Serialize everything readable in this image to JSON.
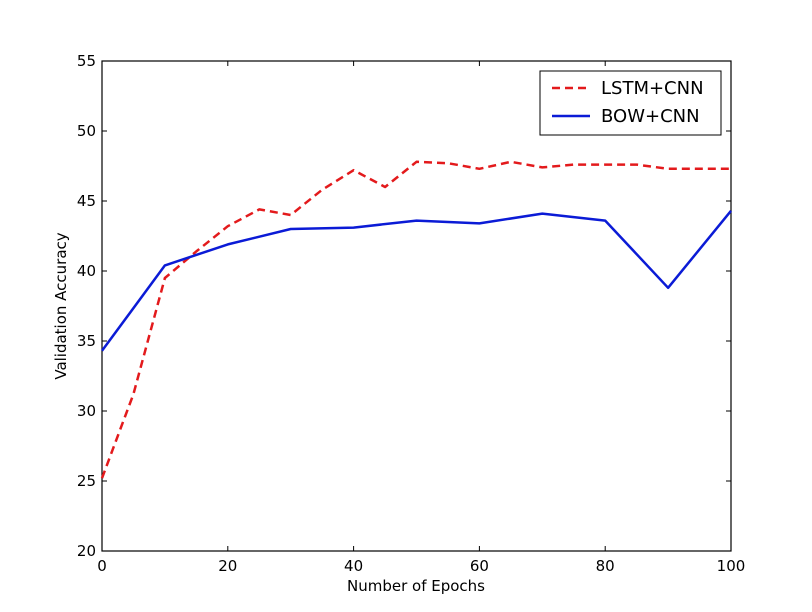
{
  "chart_data": {
    "type": "line",
    "title": "",
    "xlabel": "Number of Epochs",
    "ylabel": "Validation Accuracy",
    "xlim": [
      0,
      100
    ],
    "ylim": [
      20,
      55
    ],
    "xticks": [
      0,
      20,
      40,
      60,
      80,
      100
    ],
    "yticks": [
      20,
      25,
      30,
      35,
      40,
      45,
      50,
      55
    ],
    "grid": false,
    "legend_position": "top-right",
    "series": [
      {
        "name": "LSTM+CNN",
        "color": "#e31a1c",
        "style": "dashed",
        "x": [
          0,
          5,
          10,
          15,
          20,
          25,
          30,
          35,
          40,
          45,
          50,
          55,
          60,
          65,
          70,
          75,
          80,
          85,
          90,
          95,
          100
        ],
        "y": [
          25.2,
          31.2,
          39.5,
          41.4,
          43.2,
          44.4,
          44.0,
          45.8,
          47.2,
          46.0,
          47.8,
          47.7,
          47.3,
          47.8,
          47.4,
          47.6,
          47.6,
          47.6,
          47.3,
          47.3,
          47.3
        ]
      },
      {
        "name": "BOW+CNN",
        "color": "#0b1bd6",
        "style": "solid",
        "x": [
          0,
          10,
          20,
          30,
          40,
          50,
          60,
          70,
          80,
          90,
          100
        ],
        "y": [
          34.3,
          40.4,
          41.9,
          43.0,
          43.1,
          43.6,
          43.4,
          44.1,
          43.6,
          38.8,
          44.3
        ]
      }
    ]
  }
}
